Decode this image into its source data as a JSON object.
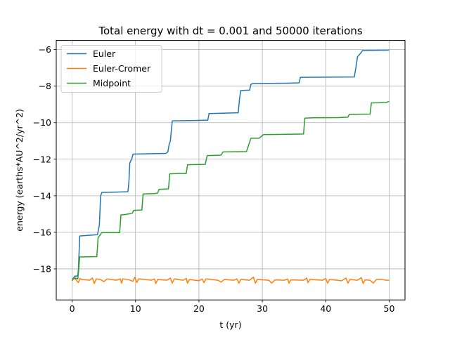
{
  "chart_data": {
    "type": "line",
    "title": "Total energy with dt = 0.001 and 50000 iterations",
    "xlabel": "t (yr)",
    "ylabel": "energy (earths*AU^2/yr^2)",
    "xlim": [
      -2.5,
      52.5
    ],
    "ylim": [
      -19.7,
      -5.5
    ],
    "xticks": [
      0,
      10,
      20,
      30,
      40,
      50
    ],
    "xtick_labels": [
      "0",
      "10",
      "20",
      "30",
      "40",
      "50"
    ],
    "yticks": [
      -18,
      -16,
      -14,
      -12,
      -10,
      -8,
      -6
    ],
    "ytick_labels": [
      "−18",
      "−16",
      "−14",
      "−12",
      "−10",
      "−8",
      "−6"
    ],
    "grid": true,
    "legend_position": "top-left",
    "series": [
      {
        "name": "Euler",
        "color": "#1f77b4",
        "points": [
          [
            0,
            -18.65
          ],
          [
            0.4,
            -18.4
          ],
          [
            0.9,
            -18.38
          ],
          [
            1.0,
            -18.0
          ],
          [
            1.2,
            -16.2
          ],
          [
            4.0,
            -16.13
          ],
          [
            4.3,
            -15.6
          ],
          [
            4.5,
            -14.0
          ],
          [
            4.7,
            -13.82
          ],
          [
            8.8,
            -13.78
          ],
          [
            8.95,
            -13.3
          ],
          [
            9.1,
            -12.2
          ],
          [
            9.4,
            -12.0
          ],
          [
            9.6,
            -11.72
          ],
          [
            14.8,
            -11.68
          ],
          [
            15.1,
            -11.6
          ],
          [
            15.3,
            -11.2
          ],
          [
            15.5,
            -11.0
          ],
          [
            15.8,
            -9.9
          ],
          [
            19.5,
            -9.88
          ],
          [
            21.4,
            -9.86
          ],
          [
            21.6,
            -9.5
          ],
          [
            26.2,
            -9.46
          ],
          [
            26.4,
            -8.7
          ],
          [
            26.6,
            -8.24
          ],
          [
            28.0,
            -8.22
          ],
          [
            28.2,
            -7.9
          ],
          [
            28.5,
            -7.86
          ],
          [
            34.0,
            -7.84
          ],
          [
            35.8,
            -7.82
          ],
          [
            36.0,
            -7.52
          ],
          [
            44.5,
            -7.5
          ],
          [
            44.8,
            -6.9
          ],
          [
            45.0,
            -6.4
          ],
          [
            45.5,
            -6.2
          ],
          [
            45.8,
            -6.05
          ],
          [
            50,
            -6.03
          ]
        ]
      },
      {
        "name": "Euler-Cromer",
        "color": "#ff7f0e",
        "points": [
          [
            0,
            -18.6
          ],
          [
            0.2,
            -18.58
          ],
          [
            0.4,
            -18.52
          ],
          [
            0.6,
            -18.6
          ],
          [
            1.0,
            -18.75
          ],
          [
            1.2,
            -18.52
          ],
          [
            1.5,
            -18.58
          ],
          [
            2.8,
            -18.62
          ],
          [
            3.2,
            -18.5
          ],
          [
            3.5,
            -18.8
          ],
          [
            3.8,
            -18.55
          ],
          [
            4.5,
            -18.58
          ],
          [
            5.0,
            -18.7
          ],
          [
            5.5,
            -18.55
          ],
          [
            7.0,
            -18.62
          ],
          [
            7.6,
            -18.55
          ],
          [
            7.8,
            -18.78
          ],
          [
            8.0,
            -18.55
          ],
          [
            9.0,
            -18.6
          ],
          [
            9.6,
            -18.68
          ],
          [
            9.9,
            -18.45
          ],
          [
            10.2,
            -18.75
          ],
          [
            10.5,
            -18.55
          ],
          [
            12.5,
            -18.62
          ],
          [
            13.0,
            -18.55
          ],
          [
            13.2,
            -18.8
          ],
          [
            13.5,
            -18.58
          ],
          [
            15.0,
            -18.62
          ],
          [
            15.5,
            -18.5
          ],
          [
            15.8,
            -18.78
          ],
          [
            16.1,
            -18.55
          ],
          [
            17.5,
            -18.62
          ],
          [
            18.0,
            -18.52
          ],
          [
            18.2,
            -18.78
          ],
          [
            18.5,
            -18.58
          ],
          [
            20.0,
            -18.65
          ],
          [
            20.5,
            -18.55
          ],
          [
            20.8,
            -18.75
          ],
          [
            21.1,
            -18.55
          ],
          [
            23.0,
            -18.62
          ],
          [
            23.5,
            -18.72
          ],
          [
            24.0,
            -18.58
          ],
          [
            25.5,
            -18.62
          ],
          [
            26.0,
            -18.55
          ],
          [
            26.3,
            -18.78
          ],
          [
            26.6,
            -18.58
          ],
          [
            28.0,
            -18.62
          ],
          [
            28.6,
            -18.45
          ],
          [
            28.9,
            -18.78
          ],
          [
            29.2,
            -18.58
          ],
          [
            31.0,
            -18.62
          ],
          [
            31.5,
            -18.78
          ],
          [
            32.0,
            -18.6
          ],
          [
            33.5,
            -18.62
          ],
          [
            34.0,
            -18.55
          ],
          [
            34.2,
            -18.78
          ],
          [
            34.5,
            -18.6
          ],
          [
            36.5,
            -18.62
          ],
          [
            37.0,
            -18.5
          ],
          [
            37.2,
            -18.75
          ],
          [
            37.5,
            -18.58
          ],
          [
            39.5,
            -18.62
          ],
          [
            40.0,
            -18.52
          ],
          [
            40.3,
            -18.78
          ],
          [
            40.6,
            -18.58
          ],
          [
            42.5,
            -18.65
          ],
          [
            43.2,
            -18.5
          ],
          [
            43.5,
            -18.78
          ],
          [
            43.8,
            -18.58
          ],
          [
            45.0,
            -18.62
          ],
          [
            45.6,
            -18.48
          ],
          [
            45.9,
            -18.8
          ],
          [
            46.2,
            -18.6
          ],
          [
            47.0,
            -18.62
          ],
          [
            47.5,
            -18.78
          ],
          [
            48.0,
            -18.58
          ],
          [
            49.0,
            -18.58
          ],
          [
            49.5,
            -18.62
          ],
          [
            50,
            -18.62
          ]
        ]
      },
      {
        "name": "Midpoint",
        "color": "#2ca02c",
        "points": [
          [
            0,
            -18.55
          ],
          [
            0.5,
            -18.5
          ],
          [
            0.9,
            -18.55
          ],
          [
            1.0,
            -18.2
          ],
          [
            1.2,
            -17.35
          ],
          [
            3.9,
            -17.33
          ],
          [
            4.1,
            -16.3
          ],
          [
            4.5,
            -16.1
          ],
          [
            4.7,
            -16.02
          ],
          [
            7.5,
            -16.02
          ],
          [
            7.7,
            -15.05
          ],
          [
            8.5,
            -15.02
          ],
          [
            9.5,
            -14.95
          ],
          [
            9.7,
            -14.8
          ],
          [
            11.0,
            -14.78
          ],
          [
            11.2,
            -13.9
          ],
          [
            13.0,
            -13.88
          ],
          [
            13.5,
            -13.85
          ],
          [
            13.7,
            -13.65
          ],
          [
            15.2,
            -13.62
          ],
          [
            15.4,
            -12.8
          ],
          [
            17.0,
            -12.78
          ],
          [
            18.0,
            -12.78
          ],
          [
            18.2,
            -12.3
          ],
          [
            21.0,
            -12.28
          ],
          [
            21.3,
            -11.8
          ],
          [
            23.5,
            -11.78
          ],
          [
            23.8,
            -11.6
          ],
          [
            27.5,
            -11.58
          ],
          [
            28.2,
            -10.85
          ],
          [
            29.5,
            -10.85
          ],
          [
            30.2,
            -10.65
          ],
          [
            35.0,
            -10.63
          ],
          [
            36.5,
            -10.62
          ],
          [
            36.7,
            -9.75
          ],
          [
            38.0,
            -9.73
          ],
          [
            42.0,
            -9.72
          ],
          [
            43.5,
            -9.7
          ],
          [
            43.7,
            -9.55
          ],
          [
            47.0,
            -9.53
          ],
          [
            47.2,
            -8.92
          ],
          [
            49.5,
            -8.9
          ],
          [
            50,
            -8.83
          ]
        ]
      }
    ]
  }
}
